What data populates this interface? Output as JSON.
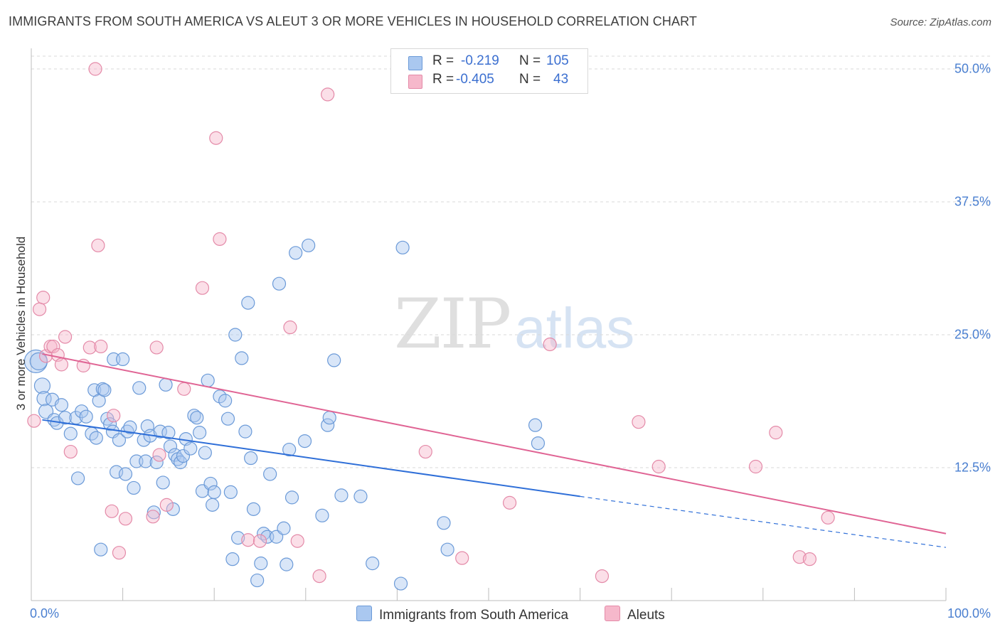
{
  "title": "IMMIGRANTS FROM SOUTH AMERICA VS ALEUT 3 OR MORE VEHICLES IN HOUSEHOLD CORRELATION CHART",
  "source": "Source: ZipAtlas.com",
  "watermark": {
    "zip": "ZIP",
    "atlas": "atlas"
  },
  "stats": [
    {
      "r_label": "R =",
      "r": "-0.219",
      "n_label": "N =",
      "n": "105",
      "color": "#aac8f0",
      "border": "#6b9ad8"
    },
    {
      "r_label": "R =",
      "r": "-0.405",
      "n_label": "N =",
      "n": "43",
      "color": "#f6b8cb",
      "border": "#e48aa8"
    }
  ],
  "legend": [
    {
      "label": "Immigrants from South America",
      "color": "#aac8f0",
      "border": "#6b9ad8"
    },
    {
      "label": "Aleuts",
      "color": "#f6b8cb",
      "border": "#e48aa8"
    }
  ],
  "chart_data": {
    "type": "scatter",
    "ylabel": "3 or more Vehicles in Household",
    "xlim": [
      0,
      100
    ],
    "ylim": [
      0,
      52
    ],
    "x_tick_labels": [
      "0.0%",
      "100.0%"
    ],
    "y_ticks": [
      12.5,
      25.0,
      37.5,
      50.0
    ],
    "y_tick_labels": [
      "12.5%",
      "25.0%",
      "37.5%",
      "50.0%"
    ],
    "grid": true,
    "series": [
      {
        "name": "Immigrants from South America",
        "color": "#6b9ad8",
        "fill": "rgba(170,200,240,0.45)",
        "trend": {
          "x0": 1.2,
          "y0": 17.0,
          "x1": 60,
          "y1": 9.8,
          "dash_to_x": 100,
          "dash_to_y": 5.0,
          "color": "#2f6fd8"
        },
        "points": [
          [
            0.5,
            22.5,
            16
          ],
          [
            0.8,
            22.5,
            12
          ],
          [
            1.2,
            20.2,
            11
          ],
          [
            1.4,
            19.0,
            10
          ],
          [
            1.6,
            17.8,
            10
          ],
          [
            2.3,
            18.9,
            9
          ],
          [
            2.5,
            17.0,
            9
          ],
          [
            2.8,
            16.7,
            9
          ],
          [
            3.3,
            18.4,
            9
          ],
          [
            3.7,
            17.2,
            9
          ],
          [
            4.3,
            15.7,
            9
          ],
          [
            4.9,
            17.2,
            9
          ],
          [
            5.1,
            11.5,
            9
          ],
          [
            5.5,
            17.8,
            9
          ],
          [
            6.0,
            17.3,
            9
          ],
          [
            6.6,
            15.7,
            9
          ],
          [
            6.9,
            19.8,
            9
          ],
          [
            7.1,
            15.3,
            9
          ],
          [
            7.4,
            18.8,
            9
          ],
          [
            7.8,
            19.9,
            9
          ],
          [
            8.0,
            19.8,
            9
          ],
          [
            8.3,
            17.1,
            9
          ],
          [
            8.6,
            16.6,
            9
          ],
          [
            8.9,
            15.9,
            9
          ],
          [
            9.0,
            22.7,
            9
          ],
          [
            9.3,
            12.1,
            9
          ],
          [
            9.6,
            15.1,
            9
          ],
          [
            10.0,
            22.7,
            9
          ],
          [
            10.3,
            11.9,
            9
          ],
          [
            10.5,
            15.9,
            9
          ],
          [
            10.8,
            16.3,
            9
          ],
          [
            11.2,
            10.6,
            9
          ],
          [
            11.5,
            13.1,
            9
          ],
          [
            11.8,
            20.0,
            9
          ],
          [
            12.3,
            15.1,
            9
          ],
          [
            12.5,
            13.1,
            9
          ],
          [
            12.7,
            16.4,
            9
          ],
          [
            13.0,
            15.5,
            9
          ],
          [
            13.4,
            8.3,
            9
          ],
          [
            13.7,
            13.0,
            9
          ],
          [
            14.1,
            15.9,
            9
          ],
          [
            14.4,
            11.1,
            9
          ],
          [
            14.7,
            20.3,
            9
          ],
          [
            15.0,
            15.8,
            9
          ],
          [
            15.2,
            14.5,
            9
          ],
          [
            15.5,
            8.6,
            9
          ],
          [
            15.7,
            13.7,
            9
          ],
          [
            16.0,
            13.3,
            9
          ],
          [
            16.3,
            13.0,
            9
          ],
          [
            16.6,
            13.6,
            9
          ],
          [
            16.9,
            15.2,
            9
          ],
          [
            17.4,
            14.3,
            9
          ],
          [
            17.8,
            17.4,
            9
          ],
          [
            18.1,
            17.2,
            9
          ],
          [
            18.4,
            15.8,
            9
          ],
          [
            18.7,
            10.3,
            9
          ],
          [
            19.0,
            13.9,
            9
          ],
          [
            19.3,
            20.7,
            9
          ],
          [
            19.6,
            11.0,
            9
          ],
          [
            19.8,
            9.0,
            9
          ],
          [
            20.0,
            10.2,
            9
          ],
          [
            20.6,
            19.2,
            9
          ],
          [
            21.2,
            18.8,
            9
          ],
          [
            21.5,
            17.1,
            9
          ],
          [
            21.8,
            10.2,
            9
          ],
          [
            22.0,
            3.9,
            9
          ],
          [
            22.3,
            25.0,
            9
          ],
          [
            22.6,
            5.9,
            9
          ],
          [
            23.0,
            22.8,
            9
          ],
          [
            23.4,
            15.9,
            9
          ],
          [
            23.7,
            28.0,
            9
          ],
          [
            24.0,
            13.4,
            9
          ],
          [
            24.3,
            8.6,
            9
          ],
          [
            24.7,
            1.9,
            9
          ],
          [
            25.1,
            3.5,
            9
          ],
          [
            25.4,
            6.3,
            9
          ],
          [
            25.8,
            6.0,
            9
          ],
          [
            26.1,
            11.9,
            9
          ],
          [
            26.8,
            6.0,
            9
          ],
          [
            27.1,
            29.8,
            9
          ],
          [
            27.6,
            6.8,
            9
          ],
          [
            27.9,
            3.4,
            9
          ],
          [
            28.2,
            14.2,
            9
          ],
          [
            28.5,
            9.7,
            9
          ],
          [
            28.9,
            32.7,
            9
          ],
          [
            29.9,
            15.0,
            9
          ],
          [
            30.3,
            33.4,
            9
          ],
          [
            31.8,
            8.0,
            9
          ],
          [
            32.4,
            16.5,
            9
          ],
          [
            32.6,
            17.2,
            9
          ],
          [
            33.1,
            22.6,
            9
          ],
          [
            33.9,
            9.9,
            9
          ],
          [
            36.0,
            9.8,
            9
          ],
          [
            37.3,
            3.5,
            9
          ],
          [
            40.4,
            1.6,
            9
          ],
          [
            40.6,
            33.2,
            9
          ],
          [
            45.1,
            7.3,
            9
          ],
          [
            45.5,
            4.8,
            9
          ],
          [
            55.1,
            16.5,
            9
          ],
          [
            55.4,
            14.8,
            9
          ],
          [
            7.6,
            4.8,
            9
          ],
          [
            5.6,
            23.8,
            0
          ],
          [
            18.2,
            9.8,
            0
          ]
        ]
      },
      {
        "name": "Aleuts",
        "color": "#e48aa8",
        "fill": "rgba(246,184,203,0.45)",
        "trend": {
          "x0": 1.2,
          "y0": 23.2,
          "x1": 100,
          "y1": 6.3,
          "color": "#e06494"
        },
        "points": [
          [
            0.3,
            16.9,
            9
          ],
          [
            0.9,
            27.4,
            9
          ],
          [
            1.3,
            28.5,
            9
          ],
          [
            1.6,
            23.0,
            9
          ],
          [
            2.1,
            23.9,
            9
          ],
          [
            2.4,
            23.9,
            9
          ],
          [
            2.9,
            23.1,
            9
          ],
          [
            3.3,
            22.2,
            9
          ],
          [
            3.7,
            24.8,
            9
          ],
          [
            4.3,
            14.0,
            9
          ],
          [
            5.7,
            22.1,
            9
          ],
          [
            6.4,
            23.8,
            9
          ],
          [
            7.0,
            50.0,
            9
          ],
          [
            7.3,
            33.4,
            9
          ],
          [
            7.6,
            23.9,
            9
          ],
          [
            8.8,
            8.4,
            9
          ],
          [
            9.0,
            17.4,
            9
          ],
          [
            9.6,
            4.5,
            9
          ],
          [
            10.3,
            7.7,
            9
          ],
          [
            13.3,
            7.9,
            9
          ],
          [
            13.7,
            23.8,
            9
          ],
          [
            14.0,
            13.7,
            9
          ],
          [
            14.8,
            9.0,
            9
          ],
          [
            16.7,
            19.9,
            9
          ],
          [
            18.7,
            29.4,
            9
          ],
          [
            20.2,
            43.5,
            9
          ],
          [
            20.6,
            34.0,
            9
          ],
          [
            23.7,
            5.7,
            9
          ],
          [
            25.0,
            5.6,
            9
          ],
          [
            28.3,
            25.7,
            9
          ],
          [
            29.1,
            5.6,
            9
          ],
          [
            31.5,
            2.3,
            9
          ],
          [
            32.4,
            47.6,
            9
          ],
          [
            43.1,
            14.0,
            9
          ],
          [
            47.1,
            4.0,
            9
          ],
          [
            52.3,
            9.2,
            9
          ],
          [
            56.7,
            24.1,
            9
          ],
          [
            62.4,
            2.3,
            9
          ],
          [
            66.4,
            16.8,
            9
          ],
          [
            68.6,
            12.6,
            9
          ],
          [
            79.2,
            12.6,
            9
          ],
          [
            81.4,
            15.8,
            9
          ],
          [
            84.0,
            4.1,
            9
          ],
          [
            85.1,
            3.9,
            9
          ],
          [
            87.1,
            7.8,
            9
          ]
        ]
      }
    ]
  }
}
